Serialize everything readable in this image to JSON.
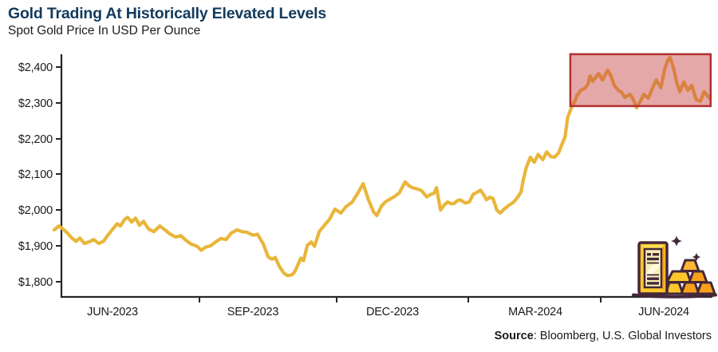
{
  "header": {
    "title": "Gold Trading At Historically Elevated Levels",
    "subtitle": "Spot Gold Price In USD Per Ounce"
  },
  "source": {
    "label": "Source",
    "rest": ": Bloomberg, U.S. Global Investors"
  },
  "chart_data": {
    "type": "line",
    "title": "Gold Trading At Historically Elevated Levels",
    "subtitle": "Spot Gold Price In USD Per Ounce",
    "xlabel": "",
    "ylabel": "Spot gold price, USD per ounce",
    "ylim": [
      1800,
      2440
    ],
    "grid": false,
    "legend": "none",
    "y_ticks": [
      2400,
      2300,
      2200,
      2100,
      2000,
      1900,
      1800
    ],
    "y_tick_labels": [
      "$2,400",
      "$2,300",
      "$2,200",
      "$2,100",
      "$2,000",
      "$1,900",
      "$1,800"
    ],
    "x_tick_labels": [
      "JUN-2023",
      "SEP-2023",
      "DEC-2023",
      "MAR-2024",
      "JUN-2024"
    ],
    "x_range_note": "May 2023 through early July 2024, t = fraction of time axis",
    "axis_color": "#262626",
    "series": [
      {
        "name": "Spot Gold Price (USD/oz)",
        "color": "#E9B63B",
        "points": [
          [
            0.0,
            1945
          ],
          [
            0.007,
            1956
          ],
          [
            0.015,
            1945
          ],
          [
            0.021,
            1934
          ],
          [
            0.027,
            1922
          ],
          [
            0.033,
            1913
          ],
          [
            0.039,
            1922
          ],
          [
            0.046,
            1907
          ],
          [
            0.055,
            1913
          ],
          [
            0.06,
            1918
          ],
          [
            0.068,
            1907
          ],
          [
            0.075,
            1913
          ],
          [
            0.083,
            1933
          ],
          [
            0.089,
            1947
          ],
          [
            0.096,
            1962
          ],
          [
            0.101,
            1956
          ],
          [
            0.107,
            1974
          ],
          [
            0.112,
            1980
          ],
          [
            0.118,
            1967
          ],
          [
            0.124,
            1978
          ],
          [
            0.13,
            1958
          ],
          [
            0.136,
            1969
          ],
          [
            0.144,
            1947
          ],
          [
            0.152,
            1940
          ],
          [
            0.161,
            1956
          ],
          [
            0.169,
            1945
          ],
          [
            0.176,
            1934
          ],
          [
            0.185,
            1925
          ],
          [
            0.193,
            1929
          ],
          [
            0.202,
            1914
          ],
          [
            0.209,
            1905
          ],
          [
            0.218,
            1899
          ],
          [
            0.224,
            1888
          ],
          [
            0.231,
            1897
          ],
          [
            0.238,
            1900
          ],
          [
            0.246,
            1911
          ],
          [
            0.254,
            1921
          ],
          [
            0.262,
            1918
          ],
          [
            0.27,
            1936
          ],
          [
            0.279,
            1945
          ],
          [
            0.286,
            1940
          ],
          [
            0.294,
            1938
          ],
          [
            0.303,
            1930
          ],
          [
            0.31,
            1933
          ],
          [
            0.319,
            1905
          ],
          [
            0.326,
            1870
          ],
          [
            0.332,
            1863
          ],
          [
            0.337,
            1868
          ],
          [
            0.343,
            1844
          ],
          [
            0.35,
            1824
          ],
          [
            0.356,
            1817
          ],
          [
            0.363,
            1820
          ],
          [
            0.367,
            1829
          ],
          [
            0.376,
            1866
          ],
          [
            0.38,
            1859
          ],
          [
            0.386,
            1902
          ],
          [
            0.392,
            1911
          ],
          [
            0.397,
            1899
          ],
          [
            0.404,
            1940
          ],
          [
            0.412,
            1958
          ],
          [
            0.42,
            1975
          ],
          [
            0.428,
            2003
          ],
          [
            0.437,
            1992
          ],
          [
            0.445,
            2010
          ],
          [
            0.454,
            2022
          ],
          [
            0.462,
            2045
          ],
          [
            0.471,
            2074
          ],
          [
            0.479,
            2030
          ],
          [
            0.487,
            1995
          ],
          [
            0.492,
            1985
          ],
          [
            0.499,
            2012
          ],
          [
            0.505,
            2023
          ],
          [
            0.511,
            2030
          ],
          [
            0.517,
            2036
          ],
          [
            0.526,
            2048
          ],
          [
            0.535,
            2079
          ],
          [
            0.541,
            2068
          ],
          [
            0.546,
            2063
          ],
          [
            0.554,
            2059
          ],
          [
            0.56,
            2055
          ],
          [
            0.568,
            2037
          ],
          [
            0.574,
            2044
          ],
          [
            0.579,
            2047
          ],
          [
            0.583,
            2063
          ],
          [
            0.589,
            2000
          ],
          [
            0.595,
            2015
          ],
          [
            0.6,
            2023
          ],
          [
            0.605,
            2018
          ],
          [
            0.61,
            2019
          ],
          [
            0.614,
            2026
          ],
          [
            0.619,
            2029
          ],
          [
            0.627,
            2020
          ],
          [
            0.633,
            2023
          ],
          [
            0.639,
            2045
          ],
          [
            0.645,
            2050
          ],
          [
            0.65,
            2056
          ],
          [
            0.656,
            2040
          ],
          [
            0.659,
            2029
          ],
          [
            0.664,
            2036
          ],
          [
            0.669,
            2033
          ],
          [
            0.675,
            2000
          ],
          [
            0.68,
            1992
          ],
          [
            0.686,
            2003
          ],
          [
            0.692,
            2012
          ],
          [
            0.7,
            2022
          ],
          [
            0.704,
            2030
          ],
          [
            0.708,
            2040
          ],
          [
            0.712,
            2052
          ],
          [
            0.715,
            2083
          ],
          [
            0.72,
            2120
          ],
          [
            0.726,
            2148
          ],
          [
            0.732,
            2134
          ],
          [
            0.738,
            2156
          ],
          [
            0.745,
            2141
          ],
          [
            0.751,
            2163
          ],
          [
            0.757,
            2150
          ],
          [
            0.763,
            2148
          ],
          [
            0.769,
            2160
          ],
          [
            0.774,
            2183
          ],
          [
            0.779,
            2205
          ],
          [
            0.783,
            2260
          ],
          [
            0.79,
            2293
          ],
          [
            0.794,
            2305
          ],
          [
            0.797,
            2320
          ],
          [
            0.803,
            2335
          ],
          [
            0.809,
            2340
          ],
          [
            0.814,
            2353
          ],
          [
            0.817,
            2375
          ],
          [
            0.821,
            2360
          ],
          [
            0.83,
            2382
          ],
          [
            0.836,
            2364
          ],
          [
            0.844,
            2391
          ],
          [
            0.849,
            2375
          ],
          [
            0.854,
            2349
          ],
          [
            0.86,
            2335
          ],
          [
            0.865,
            2330
          ],
          [
            0.87,
            2315
          ],
          [
            0.878,
            2324
          ],
          [
            0.883,
            2310
          ],
          [
            0.888,
            2286
          ],
          [
            0.894,
            2305
          ],
          [
            0.899,
            2324
          ],
          [
            0.906,
            2313
          ],
          [
            0.912,
            2340
          ],
          [
            0.918,
            2364
          ],
          [
            0.925,
            2342
          ],
          [
            0.931,
            2395
          ],
          [
            0.936,
            2420
          ],
          [
            0.939,
            2427
          ],
          [
            0.944,
            2400
          ],
          [
            0.949,
            2358
          ],
          [
            0.954,
            2331
          ],
          [
            0.96,
            2358
          ],
          [
            0.966,
            2335
          ],
          [
            0.972,
            2349
          ],
          [
            0.979,
            2309
          ],
          [
            0.985,
            2304
          ],
          [
            0.991,
            2331
          ],
          [
            0.997,
            2318
          ],
          [
            1.0,
            2312
          ]
        ]
      }
    ],
    "highlight_box": {
      "meaning": "historically elevated trading range since April 2024",
      "t_start": 0.787,
      "t_end": 1.001,
      "price_min": 2291,
      "price_max": 2436,
      "fill": "rgba(200,70,70,0.47)",
      "border": "#B22E31"
    }
  },
  "illustration": {
    "name": "gold-bars",
    "colors": {
      "outline": "#44283A",
      "gold": "#FFC72C",
      "gold_pale": "#F8EFB5",
      "orange": "#F9A01B",
      "amber": "#FFB733"
    }
  }
}
